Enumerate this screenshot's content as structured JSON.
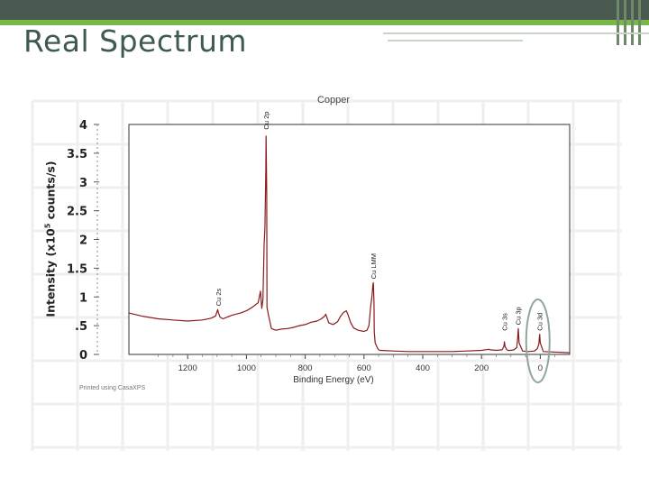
{
  "slide": {
    "title": "Real Spectrum",
    "colors": {
      "accent_green": "#7ab648",
      "header_dark": "#4a5a50",
      "title_color": "#3f5a4f",
      "spectrum": "#8b1a1a",
      "highlight": "#8fa89a"
    }
  },
  "chart_data": {
    "type": "line",
    "title": "Copper",
    "xlabel": "Binding Energy (eV)",
    "ylabel": {
      "prefix": "Intensity (x10",
      "sup": "5",
      "suffix": " counts/s)"
    },
    "xlim": [
      1400,
      -100
    ],
    "ylim": [
      0,
      4
    ],
    "x_ticks": [
      "1200",
      "1000",
      "800",
      "600",
      "400",
      "200",
      "0"
    ],
    "y_ticks": [
      "0",
      ".5",
      "1",
      "1.5",
      "2",
      "2.5",
      "3",
      "3.5",
      "4"
    ],
    "footer_note": "Printed using CasaXPS",
    "peak_labels": [
      {
        "text": "Cu 2s",
        "x": 1096,
        "y": 0.78
      },
      {
        "text": "Cu 2p",
        "x": 933,
        "y": 3.85
      },
      {
        "text": "Cu LMM",
        "x": 568,
        "y": 1.25
      },
      {
        "text": "Cu 3s",
        "x": 122,
        "y": 0.35
      },
      {
        "text": "Cu 3p",
        "x": 76,
        "y": 0.45
      },
      {
        "text": "Cu 3d",
        "x": 2,
        "y": 0.35
      }
    ],
    "highlight": {
      "label_ref": "Cu 3d",
      "x": 2
    },
    "series": [
      {
        "values_x": [
          1400,
          1350,
          1300,
          1250,
          1200,
          1150,
          1120,
          1105,
          1098,
          1095,
          1090,
          1080,
          1050,
          1020,
          1000,
          980,
          960,
          952,
          948,
          944,
          940,
          937,
          934,
          933,
          931,
          930,
          925,
          915,
          900,
          880,
          860,
          840,
          820,
          800,
          780,
          760,
          745,
          735,
          730,
          720,
          705,
          690,
          680,
          670,
          660,
          655,
          645,
          635,
          620,
          600,
          590,
          583,
          578,
          572,
          570,
          568,
          566,
          565,
          562,
          555,
          550,
          545,
          500,
          450,
          400,
          350,
          300,
          250,
          200,
          175,
          170,
          150,
          130,
          124,
          122,
          120,
          115,
          110,
          100,
          90,
          80,
          77,
          75,
          72,
          60,
          40,
          20,
          10,
          5,
          3,
          2,
          0,
          -10,
          -100
        ],
        "values_y": [
          0.72,
          0.66,
          0.62,
          0.6,
          0.58,
          0.6,
          0.63,
          0.67,
          0.78,
          0.72,
          0.65,
          0.62,
          0.68,
          0.72,
          0.76,
          0.82,
          0.9,
          1.1,
          0.8,
          0.95,
          1.9,
          2.2,
          3.2,
          3.8,
          2.8,
          0.82,
          0.68,
          0.45,
          0.42,
          0.44,
          0.45,
          0.47,
          0.5,
          0.52,
          0.56,
          0.58,
          0.62,
          0.66,
          0.7,
          0.55,
          0.52,
          0.57,
          0.66,
          0.73,
          0.76,
          0.7,
          0.55,
          0.46,
          0.42,
          0.4,
          0.42,
          0.5,
          0.8,
          1.05,
          1.2,
          1.25,
          0.9,
          0.4,
          0.2,
          0.12,
          0.08,
          0.07,
          0.06,
          0.05,
          0.05,
          0.05,
          0.05,
          0.06,
          0.07,
          0.09,
          0.08,
          0.07,
          0.08,
          0.14,
          0.22,
          0.14,
          0.09,
          0.07,
          0.07,
          0.08,
          0.12,
          0.28,
          0.45,
          0.2,
          0.06,
          0.05,
          0.06,
          0.1,
          0.18,
          0.3,
          0.35,
          0.2,
          0.05,
          0.03
        ]
      }
    ]
  }
}
